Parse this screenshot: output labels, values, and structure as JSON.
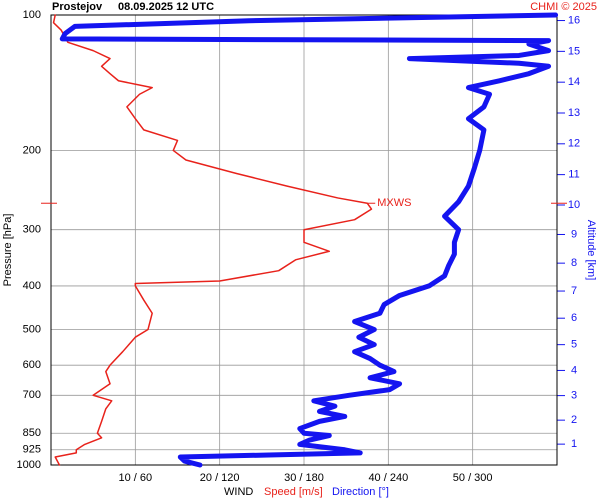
{
  "chart_data": {
    "type": "line",
    "station": "Prostejov",
    "title": "08.09.2025 12 UTC",
    "credit": "CHMI © 2025",
    "ylabel": "Pressure [hPa]",
    "y2label": "Altitude [km]",
    "xlabel": "WIND",
    "log_y": true,
    "grid": true,
    "ylim": [
      1000,
      100
    ],
    "yticks": [
      100,
      200,
      300,
      400,
      500,
      600,
      700,
      850,
      925,
      1000
    ],
    "y2ticks": [
      1,
      2,
      3,
      4,
      5,
      6,
      7,
      8,
      9,
      10,
      11,
      12,
      13,
      14,
      15,
      16
    ],
    "xlim": [
      0,
      60
    ],
    "x2lim": [
      0,
      360
    ],
    "xticks": [
      {
        "value": 10,
        "label": "10 / 60"
      },
      {
        "value": 20,
        "label": "20 / 120"
      },
      {
        "value": 30,
        "label": "30 / 180"
      },
      {
        "value": 40,
        "label": "40 / 240"
      },
      {
        "value": 50,
        "label": "50 / 300"
      }
    ],
    "annotation": {
      "text": "MXWS",
      "pressure": 262
    },
    "series": [
      {
        "name": "Speed [m/s]",
        "color": "#e8221b",
        "pressure": [
          1000,
          960,
          940,
          925,
          900,
          870,
          850,
          800,
          750,
          720,
          700,
          660,
          620,
          600,
          560,
          520,
          500,
          460,
          430,
          400,
          395,
          390,
          370,
          350,
          335,
          320,
          300,
          285,
          270,
          262,
          255,
          240,
          225,
          210,
          200,
          190,
          180,
          170,
          160,
          150,
          145,
          140,
          135,
          130,
          125,
          120,
          115,
          108,
          104,
          100
        ],
        "values": [
          1.0,
          0.5,
          3,
          3,
          4,
          6,
          5.5,
          6,
          6.5,
          7.2,
          5,
          7,
          6.5,
          7,
          8.5,
          10,
          11.5,
          12,
          11,
          10,
          10,
          20,
          27,
          29,
          33,
          30,
          30,
          36,
          38,
          37.5,
          34,
          28,
          22,
          16,
          14.5,
          15,
          11,
          10,
          9,
          10.5,
          12,
          8,
          7,
          6,
          7,
          5,
          2,
          1.2,
          0.3,
          0.5
        ]
      },
      {
        "name": "Direction [°]",
        "color": "#1414f0",
        "axis": "x2",
        "pressure": [
          1000,
          980,
          960,
          950,
          940,
          925,
          900,
          880,
          860,
          850,
          830,
          800,
          780,
          760,
          740,
          720,
          700,
          680,
          660,
          640,
          620,
          600,
          580,
          560,
          540,
          520,
          500,
          480,
          460,
          440,
          420,
          400,
          380,
          360,
          340,
          320,
          300,
          280,
          260,
          240,
          220,
          200,
          180,
          170,
          160,
          150,
          145,
          140,
          135,
          130,
          128,
          125,
          123,
          120,
          116,
          114,
          113.5,
          113,
          110,
          106,
          103,
          101,
          100
        ],
        "values": [
          106,
          95,
          92,
          155,
          220,
          209,
          177,
          184,
          198,
          180,
          177,
          191,
          209,
          191,
          202,
          187,
          212,
          241,
          248,
          227,
          244,
          234,
          227,
          216,
          230,
          219,
          230,
          216,
          234,
          237,
          248,
          269,
          280,
          283,
          287,
          287,
          290,
          280,
          290,
          297,
          301,
          305,
          308,
          297,
          308,
          312,
          297,
          319,
          340,
          354,
          333,
          255,
          333,
          354,
          340,
          354,
          177,
          8,
          10,
          17,
          141,
          283,
          359
        ]
      }
    ]
  }
}
